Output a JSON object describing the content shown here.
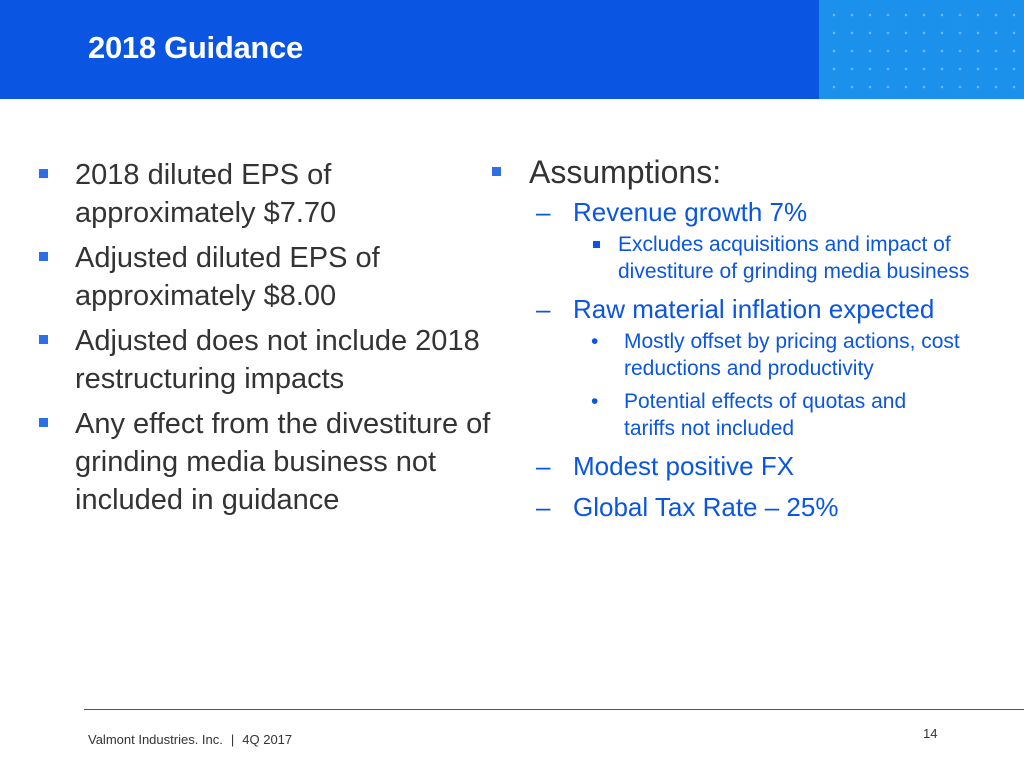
{
  "header": {
    "title": "2018 Guidance"
  },
  "left": {
    "bullets": [
      "2018 diluted EPS of approximately $7.70",
      "Adjusted diluted EPS of approximately $8.00",
      "Adjusted does not include 2018 restructuring impacts",
      "Any effect from the divestiture of grinding media business not included in guidance"
    ]
  },
  "right": {
    "heading": "Assumptions:",
    "revenue": "Revenue growth 7%",
    "revenue_note": "Excludes acquisitions and impact of divestiture of grinding media business",
    "raw_material": "Raw material inflation expected",
    "raw_note_1": "Mostly offset by pricing actions, cost reductions and productivity",
    "raw_note_2": "Potential effects of quotas and tariffs not included",
    "fx": "Modest positive FX",
    "tax": "Global Tax Rate – 25%"
  },
  "footer": {
    "company": "Valmont Industries. Inc.",
    "separator": "|",
    "period": "4Q 2017",
    "page_number": "14"
  },
  "colors": {
    "header_blue": "#0a56e2",
    "accent_blue": "#1b91ec",
    "bullet_blue": "#2f6fe6"
  }
}
